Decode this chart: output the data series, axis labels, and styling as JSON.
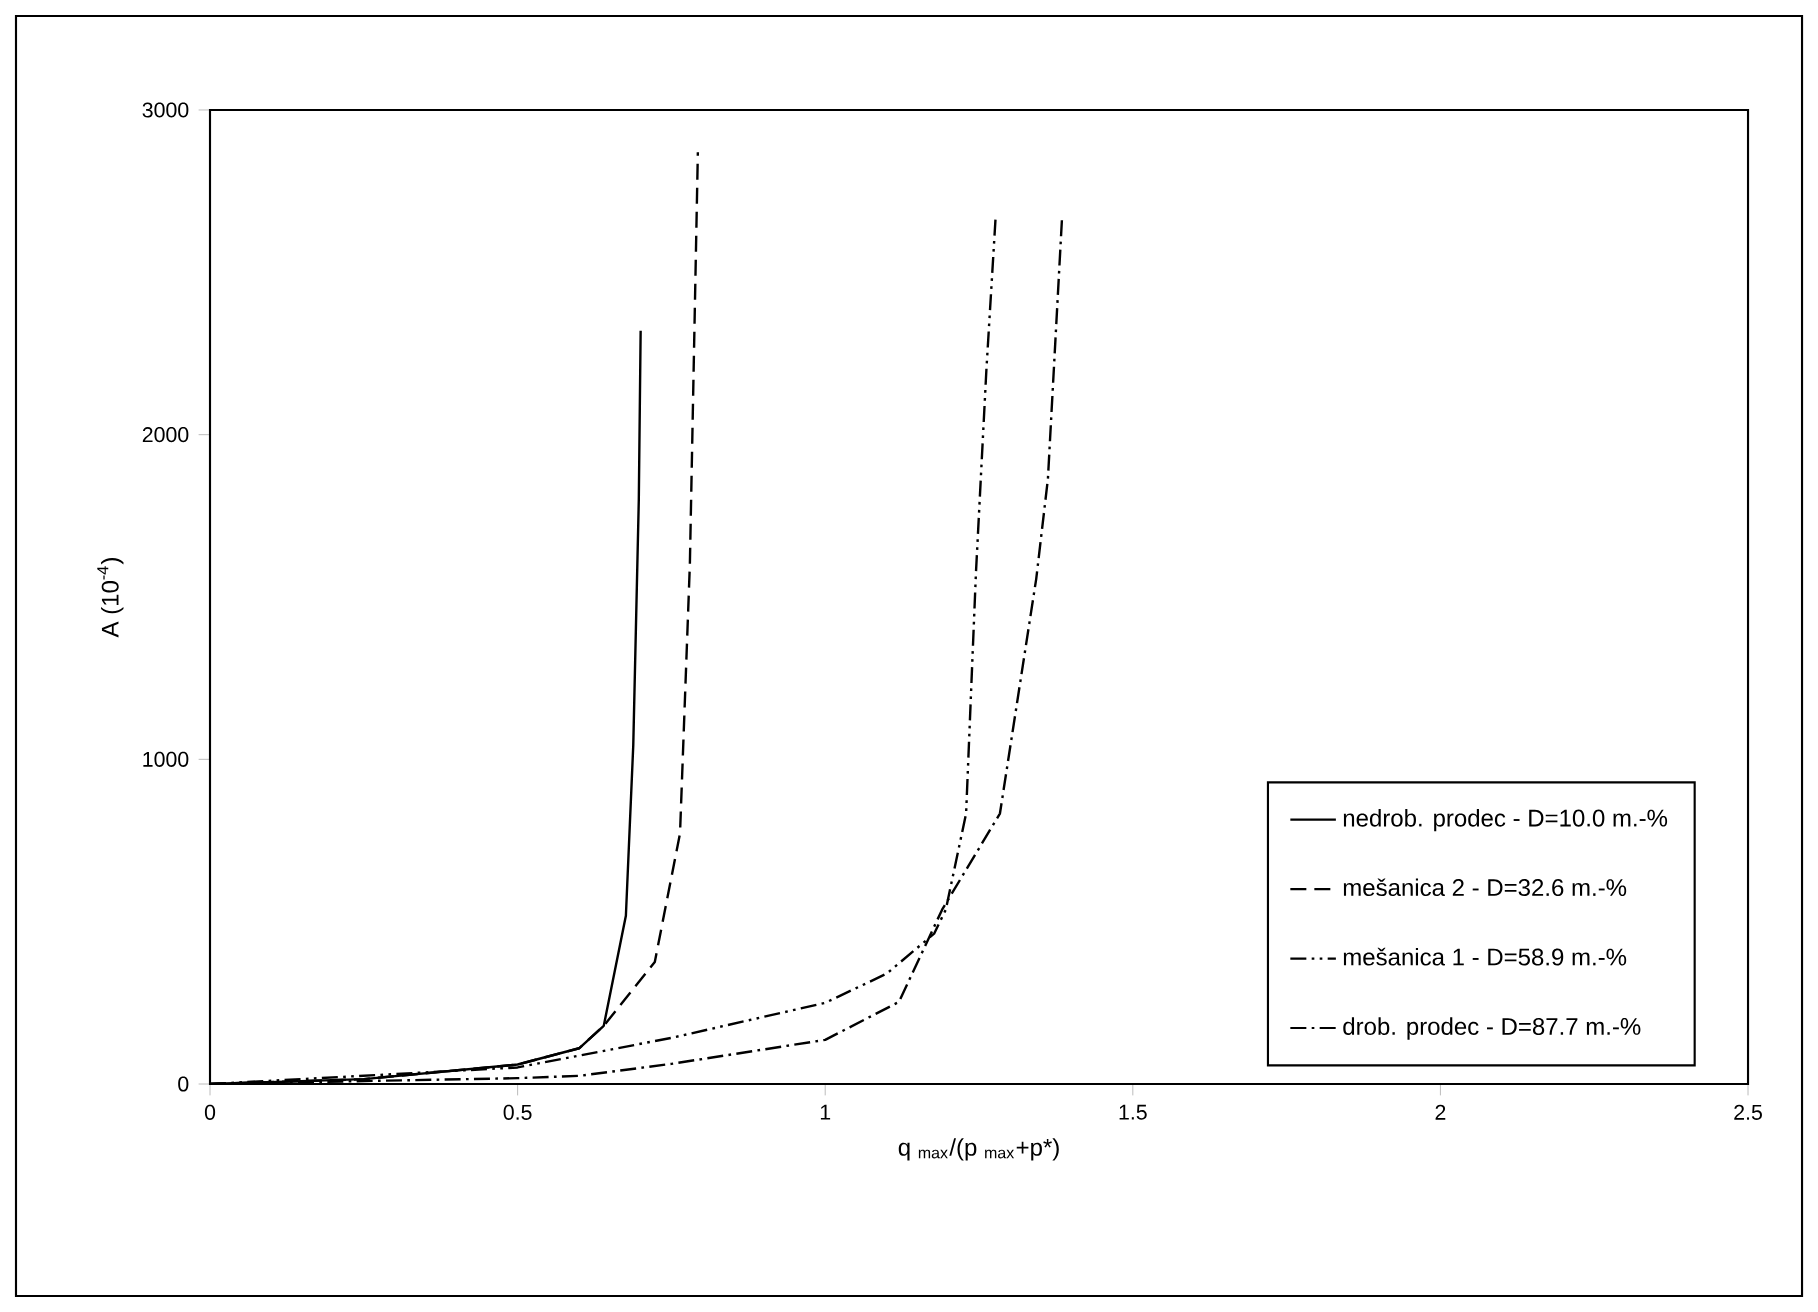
{
  "chart_data": {
    "type": "line",
    "xlabel": "q $_{max}$/(p $_{max}$+p*)",
    "ylabel": "A (10$^{-4}$)",
    "xlim": [
      0,
      2.5
    ],
    "ylim": [
      0,
      3000
    ],
    "xticks": [
      0,
      0.5,
      1,
      1.5,
      2,
      2.5
    ],
    "yticks": [
      0,
      1000,
      2000,
      3000
    ],
    "grid": false,
    "legend": "bottom right",
    "marker": "none",
    "series": [
      {
        "name": "nedrob. prodec - D=10.0 m.-%",
        "color": "#000000",
        "line_style": "solid",
        "x": [
          0,
          0.25,
          0.5,
          0.6,
          0.64,
          0.676,
          0.688,
          0.697,
          0.7
        ],
        "values": [
          0,
          15,
          60,
          110,
          179,
          518,
          1043,
          1800,
          2320
        ]
      },
      {
        "name": "mešanica 2 - D=32.6 m.-%",
        "color": "#000000",
        "line_style": "dashed",
        "x": [
          0,
          0.25,
          0.5,
          0.6,
          0.64,
          0.723,
          0.764,
          0.78,
          0.793
        ],
        "values": [
          0,
          15,
          60,
          110,
          179,
          376,
          772,
          1600,
          2870
        ]
      },
      {
        "name": "mešanica 1 - D=58.9 m.-%",
        "color": "#000000",
        "line_style": "dashdotdotted",
        "x": [
          0,
          0.5,
          0.75,
          1,
          1.1,
          1.177,
          1.196,
          1.229,
          1.245,
          1.262,
          1.277
        ],
        "values": [
          0,
          51,
          142,
          250,
          340,
          463,
          537,
          833,
          1574,
          2200,
          2670
        ]
      },
      {
        "name": "drob. prodec - D=87.7 m.-%",
        "color": "#000000",
        "line_style": "dashdotted",
        "x": [
          0,
          0.5,
          0.6,
          0.75,
          1,
          1.12,
          1.19,
          1.284,
          1.343,
          1.362,
          1.385
        ],
        "values": [
          0,
          18,
          25,
          62,
          136,
          253,
          537,
          833,
          1556,
          1864,
          2670
        ]
      }
    ]
  }
}
